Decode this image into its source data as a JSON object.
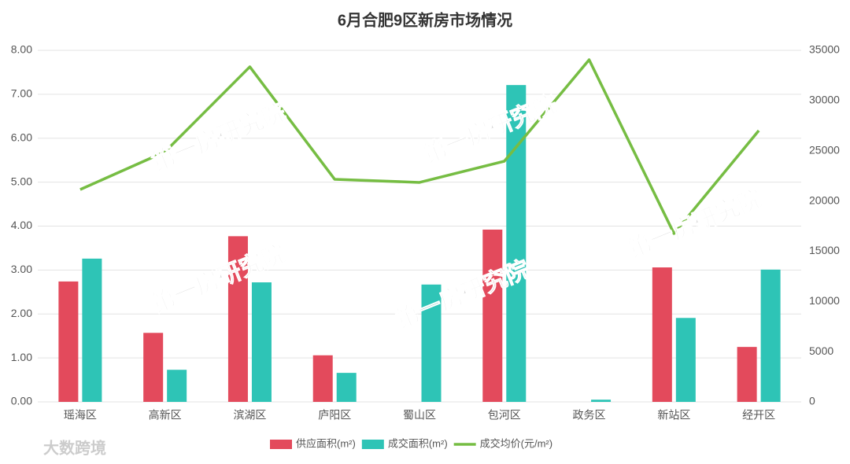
{
  "chart_data": {
    "type": "bar-line",
    "title": "6月合肥9区新房市场情况",
    "categories": [
      "瑶海区",
      "高新区",
      "滨湖区",
      "庐阳区",
      "蜀山区",
      "包河区",
      "政务区",
      "新站区",
      "经开区"
    ],
    "series": [
      {
        "name": "供应面积(m²)",
        "color": "#e34a5c",
        "type": "bar",
        "values": [
          2.74,
          1.57,
          3.77,
          1.06,
          0,
          3.92,
          0,
          3.06,
          1.25
        ]
      },
      {
        "name": "成交面积(m²)",
        "color": "#2ec4b6",
        "type": "bar",
        "values": [
          3.26,
          0.73,
          2.72,
          0.66,
          2.67,
          7.21,
          0.05,
          1.91,
          3.01
        ]
      },
      {
        "name": "成交均价(元/m²)",
        "color": "#76bd43",
        "type": "line",
        "axis": "y2",
        "values": [
          21140,
          24900,
          33360,
          22160,
          21850,
          23960,
          34060,
          16760,
          27010
        ]
      }
    ],
    "ylim": [
      0,
      8
    ],
    "yticks": [
      {
        "value": 0,
        "label": "0.00"
      },
      {
        "value": 1,
        "label": "1.00"
      },
      {
        "value": 2,
        "label": "2.00"
      },
      {
        "value": 3,
        "label": "3.00"
      },
      {
        "value": 4,
        "label": "4.00"
      },
      {
        "value": 5,
        "label": "5.00"
      },
      {
        "value": 6,
        "label": "6.00"
      },
      {
        "value": 7,
        "label": "7.00"
      },
      {
        "value": 8,
        "label": "8.00"
      }
    ],
    "y2lim": [
      0,
      35000
    ],
    "y2ticks": [
      0,
      5000,
      10000,
      15000,
      20000,
      25000,
      30000,
      35000
    ],
    "grid": true,
    "legend": "bottom"
  },
  "watermarks": [
    "第一房研究院",
    "第一房研究院",
    "第一房研究院",
    "第一房研究院",
    "第一房研究院"
  ],
  "logo": "大数跨境"
}
